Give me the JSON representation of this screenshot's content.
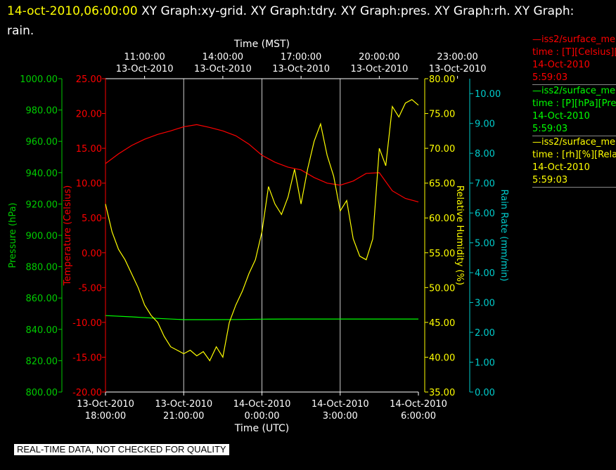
{
  "header": {
    "timestamp": "14-oct-2010,06:00:00",
    "graph_list": "XY Graph:xy-grid.  XY Graph:tdry.  XY Graph:pres.  XY Graph:rh.  XY Graph:",
    "graph_list_cont": "rain."
  },
  "legend": [
    {
      "line1": "—iss2/surface_me",
      "line2": "time : [T][Celsius][T",
      "line3": "14-Oct-2010",
      "line4": "5:59:03",
      "color": "#ff0000"
    },
    {
      "line1": "—iss2/surface_me",
      "line2": "time : [P][hPa][Pres",
      "line3": "14-Oct-2010",
      "line4": "5:59:03",
      "color": "#00ff00"
    },
    {
      "line1": "—iss2/surface_me",
      "line2": "time : [rh][%][Relati",
      "line3": "14-Oct-2010",
      "line4": "5:59:03",
      "color": "#ffff00"
    }
  ],
  "banner": "REAL-TIME DATA, NOT CHECKED FOR QUALITY",
  "chart_data": {
    "type": "line",
    "top_axis": {
      "title": "Time (MST)",
      "ticks": [
        {
          "time": "11:00:00",
          "date": "13-Oct-2010"
        },
        {
          "time": "14:00:00",
          "date": "13-Oct-2010"
        },
        {
          "time": "17:00:00",
          "date": "13-Oct-2010"
        },
        {
          "time": "20:00:00",
          "date": "13-Oct-2010"
        },
        {
          "time": "23:00:00",
          "date": "13-Oct-2010"
        }
      ]
    },
    "bottom_axis": {
      "title": "Time (UTC)",
      "range": [
        "13-Oct-2010 18:00:00",
        "14-Oct-2010 06:00:00"
      ],
      "ticks": [
        {
          "date": "13-Oct-2010",
          "time": "18:00:00"
        },
        {
          "date": "13-Oct-2010",
          "time": "21:00:00"
        },
        {
          "date": "14-Oct-2010",
          "time": "0:00:00"
        },
        {
          "date": "14-Oct-2010",
          "time": "3:00:00"
        },
        {
          "date": "14-Oct-2010",
          "time": "6:00:00"
        }
      ]
    },
    "grid": "vertical lines at each 3-hour tick",
    "axes": {
      "pressure": {
        "title": "Pressure (hPa)",
        "color": "#00cc00",
        "ylim": [
          800,
          1000
        ],
        "ticks": [
          "800.00",
          "820.00",
          "840.00",
          "860.00",
          "880.00",
          "900.00",
          "920.00",
          "940.00",
          "960.00",
          "980.00",
          "1000.00"
        ]
      },
      "temperature": {
        "title": "Temperature (Celsius)",
        "color": "#ff0000",
        "ylim": [
          -20,
          25
        ],
        "ticks": [
          "-20.00",
          "-15.00",
          "-10.00",
          "-5.00",
          "0.00",
          "5.00",
          "10.00",
          "15.00",
          "20.00",
          "25.00"
        ]
      },
      "rh": {
        "title": "Relative Humidity (%)",
        "color": "#ffff00",
        "ylim": [
          35,
          80
        ],
        "ticks": [
          "35.00",
          "40.00",
          "45.00",
          "50.00",
          "55.00",
          "60.00",
          "65.00",
          "70.00",
          "75.00",
          "80.00"
        ]
      },
      "rain": {
        "title": "Rain Rate (mm/min)",
        "color": "#00cccc",
        "ylim": [
          0,
          10.5
        ],
        "ticks": [
          "0.00",
          "1.00",
          "2.00",
          "3.00",
          "4.00",
          "5.00",
          "6.00",
          "7.00",
          "8.00",
          "9.00",
          "10.00"
        ]
      }
    },
    "series": [
      {
        "name": "iss2/surface_me time : [T][Celsius]",
        "axis": "temperature",
        "color": "#ff0000",
        "x_hours": [
          0,
          0.5,
          1,
          1.5,
          2,
          2.5,
          3,
          3.5,
          4,
          4.5,
          5,
          5.5,
          6,
          6.5,
          7,
          7.5,
          8,
          8.5,
          9,
          9.5,
          10,
          10.5,
          11,
          11.5,
          12
        ],
        "values": [
          12.8,
          14.2,
          15.4,
          16.3,
          17.0,
          17.5,
          18.1,
          18.4,
          18.0,
          17.5,
          16.8,
          15.6,
          14.0,
          13.0,
          12.3,
          11.9,
          10.8,
          10.0,
          9.7,
          10.3,
          11.4,
          11.5,
          8.9,
          7.8,
          7.3
        ]
      },
      {
        "name": "iss2/surface_me time : [P][hPa]",
        "axis": "pressure",
        "color": "#00ff00",
        "x_hours": [
          0,
          1,
          2,
          3,
          4,
          5,
          6,
          7,
          8,
          9,
          10,
          11,
          12
        ],
        "values": [
          848.8,
          848.0,
          847.0,
          846.2,
          846.2,
          846.3,
          846.5,
          846.6,
          846.6,
          846.6,
          846.6,
          846.6,
          846.6
        ]
      },
      {
        "name": "iss2/surface_me time : [rh][%]",
        "axis": "rh",
        "color": "#ffff00",
        "x_hours": [
          0,
          0.25,
          0.5,
          0.75,
          1,
          1.25,
          1.5,
          1.75,
          2,
          2.25,
          2.5,
          2.75,
          3,
          3.25,
          3.5,
          3.75,
          4,
          4.25,
          4.5,
          4.75,
          5,
          5.25,
          5.5,
          5.75,
          6,
          6.25,
          6.5,
          6.75,
          7,
          7.25,
          7.5,
          7.75,
          8,
          8.25,
          8.5,
          8.75,
          9,
          9.25,
          9.5,
          9.75,
          10,
          10.25,
          10.5,
          10.75,
          11,
          11.25,
          11.5,
          11.75,
          12
        ],
        "values": [
          62,
          58,
          55.5,
          54,
          52,
          50,
          47.5,
          46,
          45,
          43,
          41.5,
          41,
          40.5,
          41,
          40.2,
          40.8,
          39.5,
          41.5,
          40,
          45,
          47.5,
          49.5,
          52,
          54,
          58,
          64.5,
          62,
          60.5,
          63,
          67,
          62,
          67,
          71,
          73.5,
          69,
          66,
          61,
          62.5,
          57,
          54.5,
          54,
          57,
          70,
          67.5,
          76,
          74.5,
          76.5,
          77,
          76.2
        ]
      }
    ]
  }
}
